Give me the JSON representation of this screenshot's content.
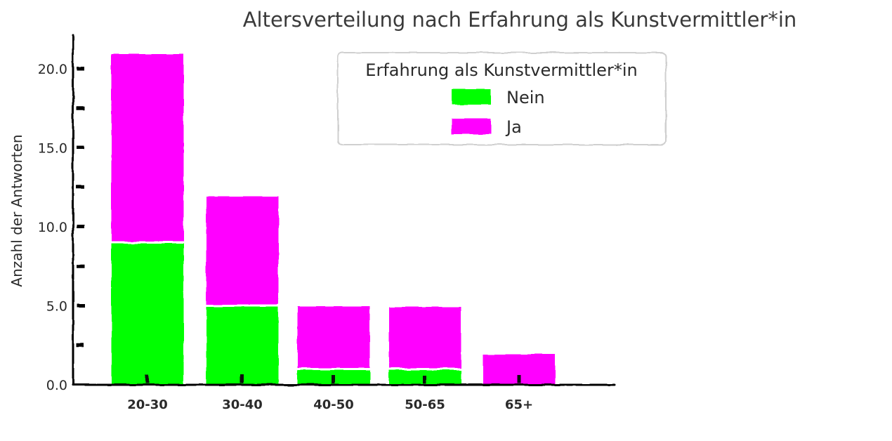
{
  "chart_data": {
    "type": "bar",
    "stacked": true,
    "title": "Altersverteilung nach Erfahrung als Kunstvermittler*in",
    "xlabel": "",
    "ylabel": "Anzahl der Antworten",
    "categories": [
      "20-30",
      "30-40",
      "40-50",
      "50-65",
      "65+"
    ],
    "series": [
      {
        "name": "Nein",
        "color": "#00ff00",
        "values": [
          9,
          5,
          1,
          1,
          0
        ]
      },
      {
        "name": "Ja",
        "color": "#ff00ff",
        "values": [
          12,
          7,
          4,
          4,
          2
        ]
      }
    ],
    "ylim": [
      0,
      22
    ],
    "yticks": [
      0,
      5,
      10,
      15,
      20
    ],
    "ytick_labels": [
      "0.0",
      "5.0",
      "10.0",
      "15.0",
      "20.0"
    ],
    "grid": false,
    "legend": {
      "title": "Erfahrung als Kunstvermittler*in",
      "placement": "top-center",
      "entries": [
        "Nein",
        "Ja"
      ]
    },
    "style": "xkcd hand-drawn"
  }
}
